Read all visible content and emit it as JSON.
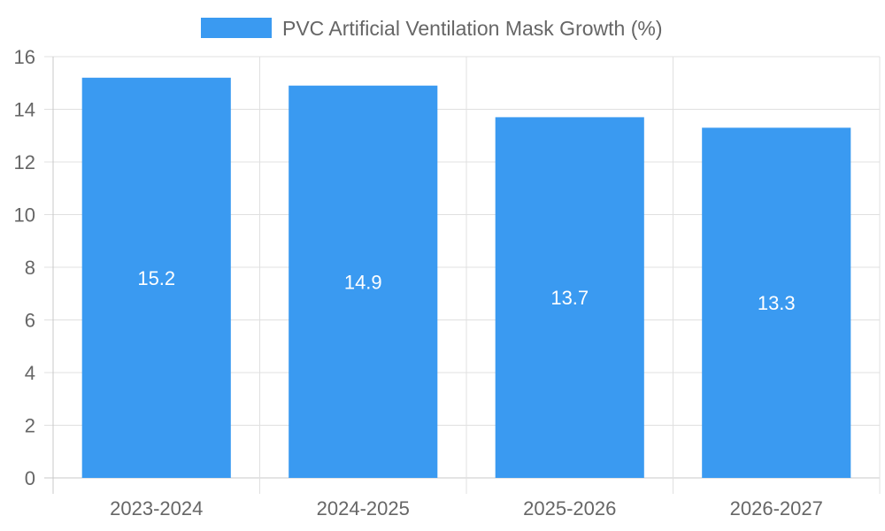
{
  "chart_data": {
    "type": "bar",
    "categories": [
      "2023-2024",
      "2024-2025",
      "2025-2026",
      "2026-2027"
    ],
    "series": [
      {
        "name": "PVC Artificial Ventilation Mask Growth (%)",
        "values": [
          15.2,
          14.9,
          13.7,
          13.3
        ],
        "color": "#3a9af1"
      }
    ],
    "ylim": [
      0,
      16
    ],
    "yticks": [
      0,
      2,
      4,
      6,
      8,
      10,
      12,
      14,
      16
    ],
    "grid": true,
    "legend_position": "top",
    "data_labels": true
  },
  "colors": {
    "grid": "#e0e0e0",
    "axis": "#c8c8c8",
    "text": "#666666",
    "label": "#ffffff"
  }
}
